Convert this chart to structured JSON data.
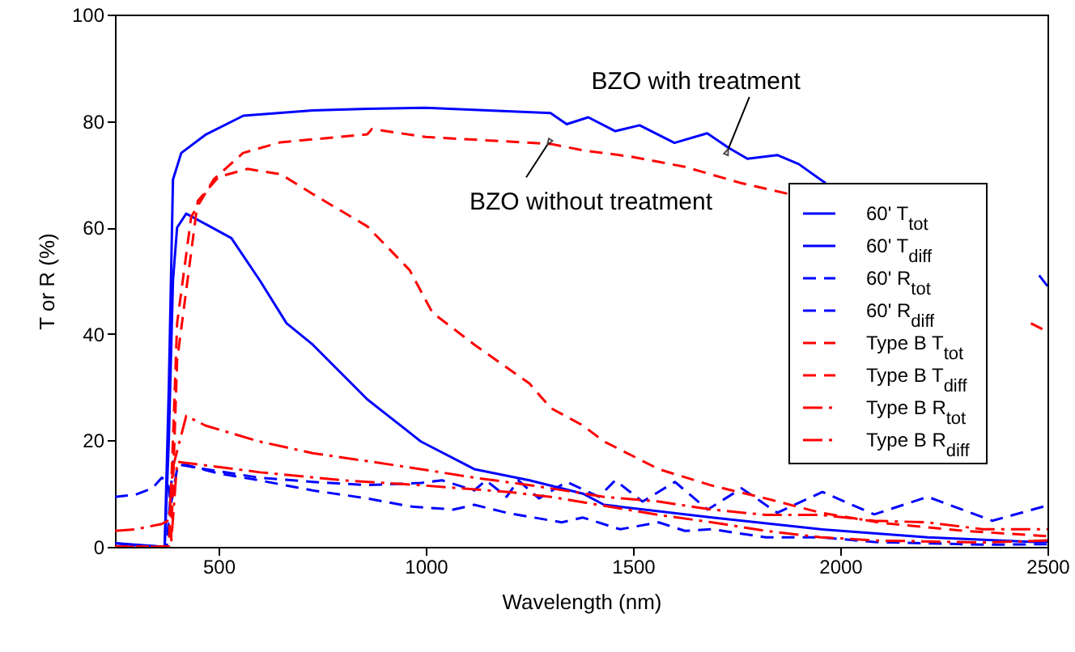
{
  "chart_data": {
    "type": "line",
    "xlabel": "Wavelength (nm)",
    "ylabel": "T or R (%)",
    "xlim": [
      250,
      2500
    ],
    "ylim": [
      0,
      100
    ],
    "xticks": [
      500,
      1000,
      1500,
      2000,
      2500
    ],
    "yticks": [
      0,
      20,
      40,
      60,
      80,
      100
    ],
    "legend": "right",
    "annotations": [
      {
        "text": "BZO with treatment",
        "x": 1730,
        "y": 74.8
      },
      {
        "text": "BZO without treatment",
        "x": 1293,
        "y": 75.5
      }
    ],
    "series": [
      {
        "name": "60' T$_{tot}$",
        "color": "#0000ff",
        "line_style": "solid",
        "x": [
          250,
          300,
          370,
          380,
          390,
          410,
          470,
          560,
          727,
          860,
          1000,
          1150,
          1301,
          1340,
          1392,
          1457,
          1516,
          1600,
          1679,
          1730,
          1776,
          1848,
          1900,
          1965,
          2000,
          2480,
          2500
        ],
        "values": [
          0.7,
          0.3,
          0,
          30,
          69,
          74,
          77.5,
          81,
          82,
          82.3,
          82.5,
          82,
          81.5,
          79.4,
          80.7,
          78.1,
          79.2,
          75.9,
          77.7,
          75,
          72.9,
          73.6,
          71.9,
          68.3,
          null,
          51,
          49
        ]
      },
      {
        "name": "60' T$_{diff}$",
        "color": "#0000ff",
        "line_style": "solid",
        "x": [
          250,
          370,
          380,
          390,
          400,
          422,
          531,
          600,
          664,
          727,
          859,
          988,
          1117,
          1250,
          1379,
          1430,
          1691,
          1953,
          2211,
          2473,
          2500
        ],
        "values": [
          0.7,
          0,
          20,
          50,
          60,
          62.6,
          58,
          50,
          42,
          38,
          27.7,
          19.8,
          14.6,
          12.5,
          10,
          7.9,
          5.5,
          3.3,
          1.8,
          0.9,
          1
        ]
      },
      {
        "name": "60' R$_{tot}$",
        "color": "#0000ff",
        "line_style": "dashed",
        "x": [
          250,
          300,
          340,
          363,
          378,
          385,
          402,
          468,
          598,
          727,
          859,
          988,
          1039,
          1117,
          1145,
          1195,
          1223,
          1273,
          1340,
          1418,
          1457,
          1523,
          1601,
          1680,
          1762,
          1848,
          1957,
          2082,
          2211,
          2367,
          2492
        ],
        "values": [
          9.4,
          9.8,
          11,
          13,
          12,
          8,
          15.5,
          14.6,
          13,
          12.2,
          11.6,
          12,
          12.5,
          10.6,
          12.5,
          9.4,
          12.5,
          9.1,
          12.2,
          9.4,
          12.5,
          8.5,
          12.2,
          7,
          11,
          6.4,
          10.3,
          6.1,
          9.4,
          4.9,
          7.6
        ]
      },
      {
        "name": "60' R$_{diff}$",
        "color": "#0000ff",
        "line_style": "dashed",
        "x": [
          250,
          375,
          390,
          500,
          598,
          727,
          859,
          961,
          1066,
          1117,
          1195,
          1328,
          1379,
          1469,
          1562,
          1625,
          1691,
          1820,
          1953,
          2082,
          2344,
          2500
        ],
        "values": [
          0,
          0,
          16,
          13.8,
          12.5,
          10.6,
          9.1,
          7.6,
          7,
          7.9,
          6.4,
          4.6,
          5.5,
          3.3,
          4.6,
          3,
          3.3,
          1.8,
          1.8,
          0.9,
          0.4,
          0.5
        ]
      },
      {
        "name": "Type B T$_{tot}$",
        "color": "#ff0000",
        "line_style": "dashed",
        "x": [
          250,
          380,
          390,
          400,
          434,
          488,
          559,
          649,
          859,
          870,
          1000,
          1301,
          1379,
          1496,
          1625,
          1758,
          1875,
          1900,
          2460,
          2500
        ],
        "values": [
          0,
          0,
          20,
          42,
          62,
          69,
          74,
          76,
          77.5,
          78.5,
          77,
          75.7,
          74.5,
          73.3,
          71.4,
          68.4,
          66.3,
          null,
          42,
          40.4
        ]
      },
      {
        "name": "Type B T$_{diff}$",
        "color": "#ff0000",
        "line_style": "dashed",
        "x": [
          250,
          385,
          400,
          450,
          500,
          570,
          650,
          727,
          859,
          961,
          1016,
          1117,
          1250,
          1301,
          1379,
          1430,
          1562,
          1691,
          1820,
          1953,
          2100,
          2300,
          2500
        ],
        "values": [
          0,
          0,
          35,
          65,
          69.5,
          71,
          70,
          66.3,
          60.2,
          52,
          44,
          38,
          30.7,
          26.1,
          22.8,
          19.8,
          14.6,
          11.5,
          9.1,
          6.4,
          4.5,
          3,
          2
        ]
      },
      {
        "name": "Type B R$_{tot}$",
        "color": "#ff0000",
        "line_style": "dashdot",
        "x": [
          250,
          300,
          363,
          380,
          390,
          422,
          468,
          598,
          727,
          859,
          988,
          1117,
          1250,
          1301,
          1430,
          1562,
          1691,
          1820,
          1953,
          2082,
          2211,
          2344,
          2500
        ],
        "values": [
          3,
          3.3,
          4.3,
          5,
          15,
          24.6,
          22.8,
          19.8,
          17.6,
          16.1,
          14.6,
          13,
          11.6,
          11,
          9.4,
          8.5,
          7,
          6,
          6,
          4.9,
          4.6,
          3.3,
          3.3
        ]
      },
      {
        "name": "Type B R$_{diff}$",
        "color": "#ff0000",
        "line_style": "dashdot",
        "x": [
          250,
          385,
          400,
          600,
          800,
          1000,
          1200,
          1301,
          1562,
          1691,
          1820,
          1953,
          2082,
          2344,
          2500
        ],
        "values": [
          0,
          0,
          16,
          14,
          12.5,
          11.5,
          10.3,
          9.4,
          6,
          4.6,
          3,
          1.8,
          1.2,
          0.8,
          1.2
        ]
      }
    ]
  }
}
